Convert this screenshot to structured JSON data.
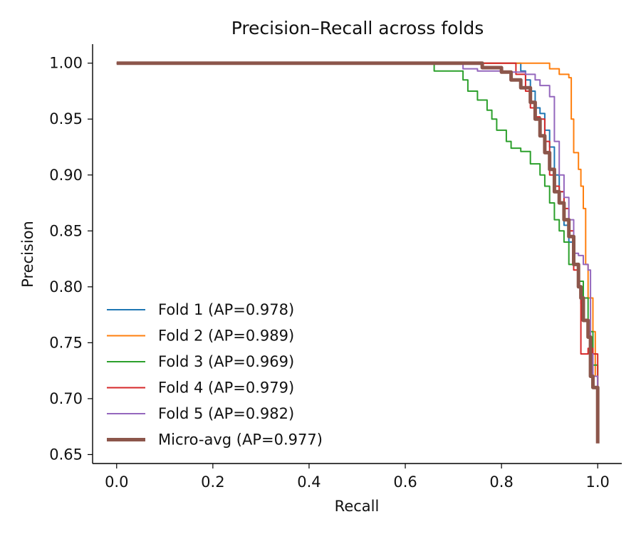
{
  "chart_data": {
    "type": "line",
    "title": "Precision–Recall across folds",
    "xlabel": "Recall",
    "ylabel": "Precision",
    "xlim": [
      -0.05,
      1.05
    ],
    "ylim": [
      0.642,
      1.017
    ],
    "xticks": [
      "0.0",
      "0.2",
      "0.4",
      "0.6",
      "0.8",
      "1.0"
    ],
    "yticks": [
      "0.65",
      "0.70",
      "0.75",
      "0.80",
      "0.85",
      "0.90",
      "0.95",
      "1.00"
    ],
    "grid": false,
    "legend_position": "lower-left",
    "series": [
      {
        "name": "Fold 1 (AP=0.978)",
        "color": "#1f77b4",
        "points": [
          [
            0,
            1.0
          ],
          [
            0.82,
            1.0
          ],
          [
            0.84,
            0.993
          ],
          [
            0.85,
            0.985
          ],
          [
            0.86,
            0.975
          ],
          [
            0.87,
            0.96
          ],
          [
            0.88,
            0.955
          ],
          [
            0.89,
            0.94
          ],
          [
            0.9,
            0.925
          ],
          [
            0.91,
            0.9
          ],
          [
            0.92,
            0.885
          ],
          [
            0.93,
            0.855
          ],
          [
            0.94,
            0.84
          ],
          [
            0.95,
            0.82
          ],
          [
            0.96,
            0.8
          ],
          [
            0.965,
            0.785
          ],
          [
            0.97,
            0.77
          ],
          [
            0.98,
            0.755
          ],
          [
            0.99,
            0.72
          ],
          [
            1.0,
            0.7
          ]
        ]
      },
      {
        "name": "Fold 2 (AP=0.989)",
        "color": "#ff7f0e",
        "points": [
          [
            0,
            1.0
          ],
          [
            0.89,
            1.0
          ],
          [
            0.9,
            0.995
          ],
          [
            0.92,
            0.99
          ],
          [
            0.94,
            0.987
          ],
          [
            0.945,
            0.95
          ],
          [
            0.95,
            0.92
          ],
          [
            0.96,
            0.905
          ],
          [
            0.965,
            0.89
          ],
          [
            0.97,
            0.87
          ],
          [
            0.975,
            0.82
          ],
          [
            0.98,
            0.79
          ],
          [
            0.99,
            0.76
          ],
          [
            0.995,
            0.72
          ],
          [
            1.0,
            0.69
          ]
        ]
      },
      {
        "name": "Fold 3 (AP=0.969)",
        "color": "#2ca02c",
        "points": [
          [
            0,
            1.0
          ],
          [
            0.66,
            0.993
          ],
          [
            0.72,
            0.985
          ],
          [
            0.73,
            0.975
          ],
          [
            0.75,
            0.967
          ],
          [
            0.77,
            0.958
          ],
          [
            0.78,
            0.95
          ],
          [
            0.79,
            0.94
          ],
          [
            0.81,
            0.93
          ],
          [
            0.82,
            0.924
          ],
          [
            0.84,
            0.921
          ],
          [
            0.86,
            0.91
          ],
          [
            0.88,
            0.9
          ],
          [
            0.89,
            0.89
          ],
          [
            0.9,
            0.875
          ],
          [
            0.91,
            0.86
          ],
          [
            0.92,
            0.85
          ],
          [
            0.93,
            0.84
          ],
          [
            0.94,
            0.82
          ],
          [
            0.96,
            0.805
          ],
          [
            0.97,
            0.79
          ],
          [
            0.98,
            0.76
          ],
          [
            0.99,
            0.73
          ],
          [
            1.0,
            0.7
          ]
        ]
      },
      {
        "name": "Fold 4 (AP=0.979)",
        "color": "#d62728",
        "points": [
          [
            0,
            1.0
          ],
          [
            0.81,
            1.0
          ],
          [
            0.83,
            0.99
          ],
          [
            0.85,
            0.975
          ],
          [
            0.86,
            0.96
          ],
          [
            0.87,
            0.952
          ],
          [
            0.88,
            0.95
          ],
          [
            0.89,
            0.93
          ],
          [
            0.9,
            0.9
          ],
          [
            0.91,
            0.89
          ],
          [
            0.92,
            0.885
          ],
          [
            0.93,
            0.87
          ],
          [
            0.94,
            0.85
          ],
          [
            0.95,
            0.815
          ],
          [
            0.96,
            0.8
          ],
          [
            0.965,
            0.74
          ],
          [
            0.98,
            0.745
          ],
          [
            0.99,
            0.74
          ],
          [
            1.0,
            0.705
          ]
        ]
      },
      {
        "name": "Fold 5 (AP=0.982)",
        "color": "#9467bd",
        "points": [
          [
            0,
            1.0
          ],
          [
            0.66,
            1.0
          ],
          [
            0.72,
            0.995
          ],
          [
            0.75,
            0.993
          ],
          [
            0.8,
            0.992
          ],
          [
            0.85,
            0.99
          ],
          [
            0.87,
            0.985
          ],
          [
            0.88,
            0.98
          ],
          [
            0.9,
            0.97
          ],
          [
            0.91,
            0.93
          ],
          [
            0.92,
            0.9
          ],
          [
            0.93,
            0.88
          ],
          [
            0.94,
            0.86
          ],
          [
            0.95,
            0.83
          ],
          [
            0.96,
            0.828
          ],
          [
            0.97,
            0.82
          ],
          [
            0.98,
            0.815
          ],
          [
            0.985,
            0.74
          ],
          [
            0.99,
            0.72
          ],
          [
            1.0,
            0.7
          ]
        ]
      },
      {
        "name": "Micro-avg (AP=0.977)",
        "color": "#8c564b",
        "thick": true,
        "points": [
          [
            0,
            1.0
          ],
          [
            0.66,
            1.0
          ],
          [
            0.76,
            0.996
          ],
          [
            0.8,
            0.992
          ],
          [
            0.82,
            0.985
          ],
          [
            0.84,
            0.978
          ],
          [
            0.86,
            0.965
          ],
          [
            0.87,
            0.95
          ],
          [
            0.88,
            0.935
          ],
          [
            0.89,
            0.92
          ],
          [
            0.9,
            0.905
          ],
          [
            0.91,
            0.885
          ],
          [
            0.92,
            0.875
          ],
          [
            0.93,
            0.86
          ],
          [
            0.94,
            0.845
          ],
          [
            0.95,
            0.82
          ],
          [
            0.96,
            0.8
          ],
          [
            0.965,
            0.79
          ],
          [
            0.97,
            0.77
          ],
          [
            0.98,
            0.755
          ],
          [
            0.985,
            0.72
          ],
          [
            0.99,
            0.71
          ],
          [
            1.0,
            0.69
          ],
          [
            1.0,
            0.66
          ]
        ]
      }
    ]
  }
}
